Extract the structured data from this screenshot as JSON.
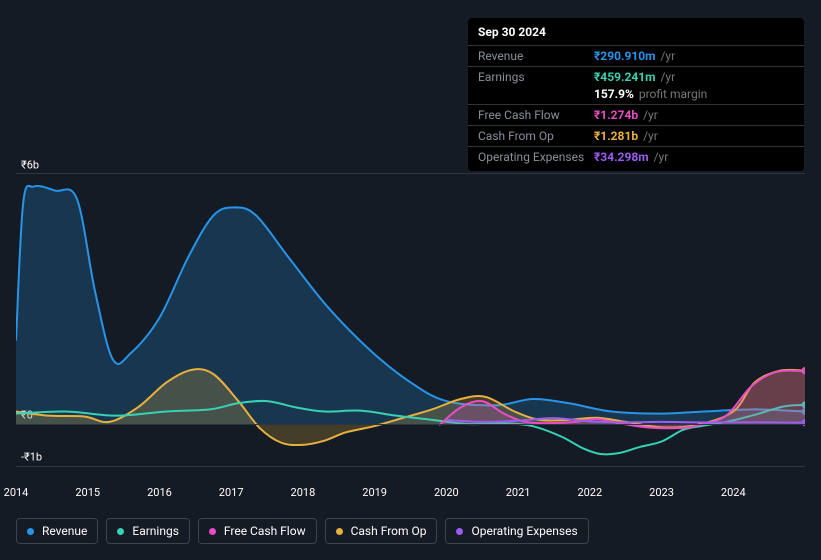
{
  "tooltip": {
    "date": "Sep 30 2024",
    "rows": [
      {
        "label": "Revenue",
        "value": "₹290.910m",
        "suffix": "/yr",
        "color": "#2794e8"
      },
      {
        "label": "Earnings",
        "value": "₹459.241m",
        "suffix": "/yr",
        "color": "#37d1b3"
      },
      {
        "label": "",
        "value": "157.9%",
        "suffix": "profit margin",
        "color": "#ffffff",
        "no_border": true
      },
      {
        "label": "Free Cash Flow",
        "value": "₹1.274b",
        "suffix": "/yr",
        "color": "#e84dc4"
      },
      {
        "label": "Cash From Op",
        "value": "₹1.281b",
        "suffix": "/yr",
        "color": "#e8b13d"
      },
      {
        "label": "Operating Expenses",
        "value": "₹34.298m",
        "suffix": "/yr",
        "color": "#9b5cf0"
      }
    ]
  },
  "chart": {
    "type": "area-line",
    "background": "#151b24",
    "grid_color": "#2c3540",
    "y_axis": {
      "min": -1.2,
      "max": 6.0,
      "ticks": [
        {
          "v": 6,
          "label": "₹6b"
        },
        {
          "v": 0,
          "label": "₹0"
        },
        {
          "v": -1,
          "label": "-₹1b"
        }
      ]
    },
    "x_axis": {
      "min": 0,
      "max": 11,
      "labels": [
        "2014",
        "2015",
        "2016",
        "2017",
        "2018",
        "2019",
        "2020",
        "2021",
        "2022",
        "2023",
        "2024"
      ]
    },
    "area_opacity": 0.22,
    "line_width": 2,
    "series": [
      {
        "id": "revenue",
        "label": "Revenue",
        "color": "#2794e8",
        "fill": true,
        "points": [
          [
            0.0,
            2.0
          ],
          [
            0.1,
            5.3
          ],
          [
            0.25,
            5.7
          ],
          [
            0.55,
            5.6
          ],
          [
            0.85,
            5.4
          ],
          [
            1.1,
            3.2
          ],
          [
            1.35,
            1.55
          ],
          [
            1.6,
            1.7
          ],
          [
            2.0,
            2.55
          ],
          [
            2.4,
            4.0
          ],
          [
            2.75,
            5.0
          ],
          [
            3.05,
            5.2
          ],
          [
            3.35,
            5.0
          ],
          [
            3.8,
            4.0
          ],
          [
            4.35,
            2.8
          ],
          [
            4.95,
            1.75
          ],
          [
            5.5,
            1.0
          ],
          [
            6.0,
            0.55
          ],
          [
            6.7,
            0.45
          ],
          [
            7.2,
            0.6
          ],
          [
            7.7,
            0.5
          ],
          [
            8.3,
            0.3
          ],
          [
            9.0,
            0.25
          ],
          [
            9.6,
            0.3
          ],
          [
            10.3,
            0.35
          ],
          [
            11.0,
            0.3
          ]
        ]
      },
      {
        "id": "cash_from_op",
        "label": "Cash From Op",
        "color": "#e8b13d",
        "fill": true,
        "points": [
          [
            0.0,
            0.3
          ],
          [
            0.45,
            0.2
          ],
          [
            0.95,
            0.18
          ],
          [
            1.3,
            0.05
          ],
          [
            1.7,
            0.4
          ],
          [
            2.1,
            1.0
          ],
          [
            2.45,
            1.3
          ],
          [
            2.75,
            1.2
          ],
          [
            3.1,
            0.55
          ],
          [
            3.4,
            -0.1
          ],
          [
            3.7,
            -0.45
          ],
          [
            4.0,
            -0.5
          ],
          [
            4.3,
            -0.4
          ],
          [
            4.6,
            -0.2
          ],
          [
            5.0,
            -0.05
          ],
          [
            5.4,
            0.15
          ],
          [
            5.8,
            0.35
          ],
          [
            6.2,
            0.6
          ],
          [
            6.55,
            0.65
          ],
          [
            6.95,
            0.3
          ],
          [
            7.3,
            0.1
          ],
          [
            7.7,
            0.1
          ],
          [
            8.1,
            0.15
          ],
          [
            8.5,
            0.05
          ],
          [
            9.0,
            -0.08
          ],
          [
            9.5,
            -0.02
          ],
          [
            10.0,
            0.3
          ],
          [
            10.3,
            1.0
          ],
          [
            10.65,
            1.28
          ],
          [
            11.0,
            1.28
          ]
        ]
      },
      {
        "id": "earnings",
        "label": "Earnings",
        "color": "#37d1b3",
        "fill": false,
        "points": [
          [
            0.0,
            0.25
          ],
          [
            0.7,
            0.3
          ],
          [
            1.4,
            0.2
          ],
          [
            2.1,
            0.3
          ],
          [
            2.7,
            0.35
          ],
          [
            3.1,
            0.5
          ],
          [
            3.5,
            0.55
          ],
          [
            3.9,
            0.4
          ],
          [
            4.3,
            0.3
          ],
          [
            4.8,
            0.32
          ],
          [
            5.3,
            0.2
          ],
          [
            5.8,
            0.1
          ],
          [
            6.3,
            0.0
          ],
          [
            6.8,
            0.02
          ],
          [
            7.2,
            -0.05
          ],
          [
            7.6,
            -0.3
          ],
          [
            7.9,
            -0.58
          ],
          [
            8.15,
            -0.72
          ],
          [
            8.4,
            -0.7
          ],
          [
            8.7,
            -0.55
          ],
          [
            9.0,
            -0.42
          ],
          [
            9.3,
            -0.14
          ],
          [
            9.55,
            -0.05
          ],
          [
            9.9,
            0.05
          ],
          [
            10.3,
            0.22
          ],
          [
            10.7,
            0.42
          ],
          [
            11.0,
            0.46
          ]
        ]
      },
      {
        "id": "free_cash_flow",
        "label": "Free Cash Flow",
        "color": "#e84dc4",
        "fill": true,
        "points": [
          [
            5.9,
            -0.03
          ],
          [
            6.2,
            0.4
          ],
          [
            6.5,
            0.55
          ],
          [
            6.8,
            0.25
          ],
          [
            7.1,
            0.05
          ],
          [
            7.45,
            0.02
          ],
          [
            7.8,
            0.05
          ],
          [
            8.1,
            0.12
          ],
          [
            8.4,
            0.02
          ],
          [
            8.8,
            -0.08
          ],
          [
            9.2,
            -0.1
          ],
          [
            9.5,
            -0.04
          ],
          [
            9.9,
            0.2
          ],
          [
            10.25,
            0.9
          ],
          [
            10.6,
            1.25
          ],
          [
            11.0,
            1.27
          ]
        ]
      },
      {
        "id": "operating_expenses",
        "label": "Operating Expenses",
        "color": "#9b5cf0",
        "fill": false,
        "points": [
          [
            6.0,
            0.1
          ],
          [
            6.5,
            0.05
          ],
          [
            7.0,
            0.08
          ],
          [
            7.5,
            0.14
          ],
          [
            8.0,
            0.06
          ],
          [
            8.5,
            0.04
          ],
          [
            9.0,
            0.05
          ],
          [
            9.5,
            0.04
          ],
          [
            10.0,
            0.04
          ],
          [
            10.5,
            0.04
          ],
          [
            11.0,
            0.03
          ]
        ]
      }
    ]
  },
  "legend": [
    {
      "id": "revenue",
      "label": "Revenue",
      "color": "#2794e8"
    },
    {
      "id": "earnings",
      "label": "Earnings",
      "color": "#37d1b3"
    },
    {
      "id": "free_cash_flow",
      "label": "Free Cash Flow",
      "color": "#e84dc4"
    },
    {
      "id": "cash_from_op",
      "label": "Cash From Op",
      "color": "#e8b13d"
    },
    {
      "id": "operating_expenses",
      "label": "Operating Expenses",
      "color": "#9b5cf0"
    }
  ]
}
